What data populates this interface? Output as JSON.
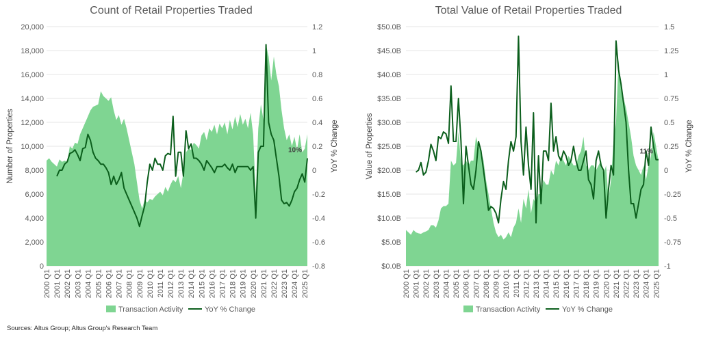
{
  "colors": {
    "area": "#7fd592",
    "line": "#0b5e1c",
    "grid": "#e6e6e6"
  },
  "source": "Sources: Altus Group; Altus Group's Research Team",
  "chart_data": [
    {
      "type": "area+line",
      "title": "Count of Retail Properties Traded",
      "ylabel": "Number of Properties",
      "y2label": "YoY % Change",
      "ylim": [
        0,
        20000
      ],
      "yticks": [
        "0",
        "2,000",
        "4,000",
        "6,000",
        "8,000",
        "10,000",
        "12,000",
        "14,000",
        "16,000",
        "18,000",
        "20,000"
      ],
      "y2lim": [
        -0.8,
        1.2
      ],
      "y2ticks": [
        "-0.8",
        "-0.6",
        "-0.4",
        "-0.2",
        "0",
        "0.2",
        "0.4",
        "0.6",
        "0.8",
        "1",
        "1.2"
      ],
      "start": "2000 Q1",
      "line_start": "2001 Q1",
      "annotation": "10%",
      "grid": true,
      "legend": "bottom",
      "series": [
        {
          "name": "Transaction Activity",
          "kind": "area",
          "values": [
            8800,
            9000,
            8700,
            8500,
            8300,
            8900,
            8700,
            8800,
            8700,
            10000,
            9800,
            10300,
            10200,
            11000,
            11500,
            12000,
            12500,
            13000,
            13300,
            13400,
            13500,
            14600,
            14200,
            14000,
            13800,
            14100,
            13000,
            12200,
            12600,
            11800,
            12300,
            11500,
            10500,
            9500,
            8500,
            7000,
            5500,
            4800,
            5500,
            5300,
            5600,
            5500,
            5800,
            6000,
            6200,
            5900,
            6600,
            6200,
            6800,
            7200,
            7000,
            7500,
            6500,
            7800,
            9500,
            9800,
            9700,
            10300,
            10100,
            9800,
            10900,
            11200,
            10500,
            11500,
            11200,
            11800,
            11000,
            11900,
            11500,
            12000,
            11000,
            12200,
            11400,
            12500,
            11600,
            12700,
            11800,
            12300,
            11500,
            12800,
            11000,
            6000,
            11500,
            13500,
            12200,
            18500,
            17500,
            15500,
            17500,
            16000,
            15000,
            13000,
            11500,
            10500,
            11000,
            10000,
            10800,
            9700,
            11000,
            9500,
            9800,
            11000
          ]
        },
        {
          "name": "YoY % Change",
          "kind": "line",
          "values": [
            -0.05,
            0.0,
            0.0,
            0.05,
            0.07,
            0.14,
            0.15,
            0.17,
            0.13,
            0.08,
            0.18,
            0.19,
            0.3,
            0.25,
            0.15,
            0.1,
            0.08,
            0.05,
            0.05,
            0.02,
            -0.02,
            -0.12,
            -0.05,
            -0.12,
            -0.08,
            -0.02,
            -0.15,
            -0.2,
            -0.25,
            -0.3,
            -0.35,
            -0.4,
            -0.47,
            -0.38,
            -0.3,
            -0.1,
            0.05,
            0.0,
            0.1,
            0.05,
            0.05,
            0.0,
            0.12,
            0.14,
            0.13,
            0.45,
            -0.05,
            0.15,
            0.15,
            -0.05,
            0.33,
            0.18,
            0.22,
            0.1,
            0.1,
            0.08,
            0.05,
            0.0,
            0.08,
            0.05,
            0.02,
            -0.02,
            0.03,
            0.03,
            0.03,
            0.05,
            0.02,
            0.0,
            0.05,
            -0.02,
            0.03,
            0.03,
            0.03,
            0.03,
            0.03,
            0.0,
            0.03,
            -0.4,
            0.15,
            0.2,
            0.2,
            1.05,
            0.4,
            0.3,
            0.25,
            0.1,
            -0.05,
            -0.25,
            -0.28,
            -0.27,
            -0.3,
            -0.25,
            -0.18,
            -0.15,
            -0.08,
            -0.03,
            -0.1,
            0.1
          ]
        }
      ]
    },
    {
      "type": "area+line",
      "title": "Total Value of Retail Properties Traded",
      "ylabel": "Value of Properties",
      "y2label": "YoY % Change",
      "ylim": [
        0,
        50
      ],
      "yticks": [
        "$0.0B",
        "$5.0B",
        "$10.0B",
        "$15.0B",
        "$20.0B",
        "$25.0B",
        "$30.0B",
        "$35.0B",
        "$40.0B",
        "$45.0B",
        "$50.0B"
      ],
      "y2lim": [
        -1,
        1.5
      ],
      "y2ticks": [
        "-1",
        "-0.75",
        "-0.5",
        "-0.25",
        "0",
        "0.25",
        "0.5",
        "0.75",
        "1",
        "1.25",
        "1.5"
      ],
      "start": "2000 Q1",
      "line_start": "2001 Q1",
      "annotation": "11%",
      "grid": true,
      "legend": "bottom",
      "series": [
        {
          "name": "Transaction Activity",
          "kind": "area",
          "values": [
            7.5,
            7,
            6.5,
            7.5,
            7,
            6.8,
            6.7,
            7,
            7.2,
            7.5,
            8.5,
            8.5,
            8,
            9.5,
            12,
            12.5,
            12.5,
            13,
            22,
            21,
            21.5,
            28,
            21.5,
            21,
            22,
            21,
            22,
            22,
            27,
            25,
            24,
            22,
            18,
            15,
            12,
            9,
            7,
            6,
            6.5,
            5.5,
            6,
            7,
            6,
            8,
            9,
            12,
            9,
            14,
            12,
            16,
            11,
            14,
            13,
            15,
            15,
            18,
            17,
            17,
            20,
            19,
            22,
            21,
            23,
            22,
            21,
            23,
            22,
            21,
            21,
            23,
            24,
            27,
            21,
            20,
            21,
            21,
            20,
            21,
            22,
            19,
            21,
            14,
            18,
            26,
            30,
            43,
            37,
            35,
            33,
            30,
            27,
            23,
            21,
            20,
            19,
            21,
            18,
            21,
            23,
            28,
            25,
            22
          ]
        },
        {
          "name": "YoY % Change",
          "kind": "line",
          "values": [
            -0.02,
            0.0,
            0.08,
            -0.05,
            -0.02,
            0.1,
            0.27,
            0.2,
            0.1,
            0.35,
            0.33,
            0.4,
            0.38,
            0.28,
            0.88,
            0.3,
            0.3,
            0.75,
            0.3,
            -0.35,
            0.25,
            0.05,
            -0.15,
            -0.2,
            0.0,
            0.3,
            0.2,
            0.0,
            -0.2,
            -0.42,
            -0.38,
            -0.4,
            -0.45,
            -0.55,
            -0.3,
            -0.12,
            -0.2,
            0.1,
            0.3,
            0.2,
            0.35,
            1.4,
            0.3,
            -0.05,
            0.45,
            0.05,
            -0.2,
            0.6,
            -0.55,
            0.15,
            -0.35,
            0.2,
            0.2,
            0.1,
            0.7,
            0.2,
            0.35,
            0.15,
            0.1,
            0.2,
            0.15,
            0.05,
            0.1,
            0.25,
            0.1,
            0.0,
            0.0,
            0.1,
            0.2,
            -0.1,
            -0.15,
            -0.3,
            0.1,
            0.2,
            0.05,
            0.0,
            -0.5,
            -0.2,
            0.05,
            -0.05,
            1.35,
            1.05,
            0.9,
            0.7,
            0.5,
            0.0,
            -0.35,
            -0.35,
            -0.5,
            -0.35,
            -0.2,
            -0.15,
            0.2,
            0.05,
            0.45,
            0.25,
            0.11,
            0.11
          ]
        }
      ]
    }
  ]
}
